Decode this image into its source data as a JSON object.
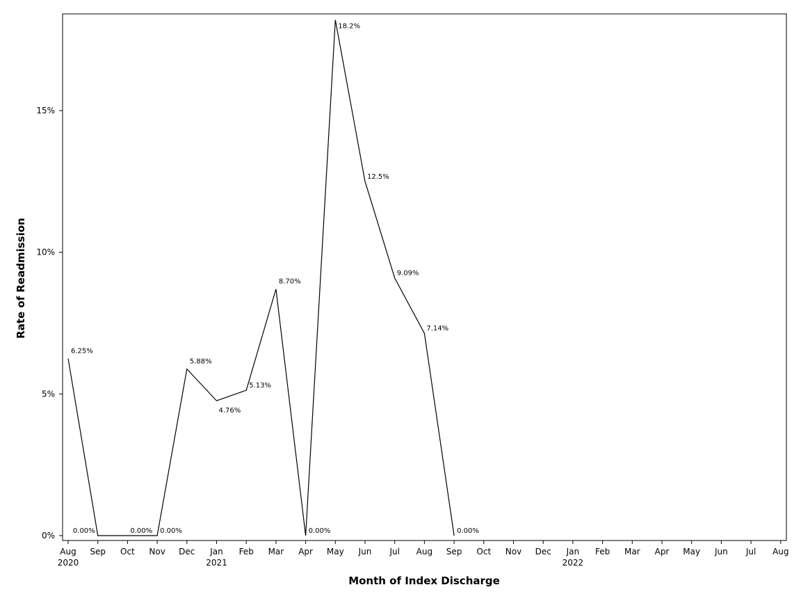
{
  "chart_data": {
    "type": "line",
    "title": "",
    "xlabel": "Month of Index Discharge",
    "ylabel": "Rate of Readmission",
    "ylim": [
      0,
      18.5
    ],
    "yticks": [
      0,
      5,
      10,
      15
    ],
    "ytick_labels": [
      "0%",
      "5%",
      "10%",
      "15%"
    ],
    "xtick_labels": [
      "Aug",
      "Sep",
      "Oct",
      "Nov",
      "Dec",
      "Jan",
      "Feb",
      "Mar",
      "Apr",
      "May",
      "Jun",
      "Jul",
      "Aug",
      "Sep",
      "Oct",
      "Nov",
      "Dec",
      "Jan",
      "Feb",
      "Mar",
      "Apr",
      "May",
      "Jun",
      "Jul",
      "Aug"
    ],
    "year_labels": [
      {
        "month": "Aug",
        "year": "2020"
      },
      {
        "month": "Jan",
        "year": "2021"
      },
      {
        "month": "Jan",
        "year": "2022"
      }
    ],
    "x_range": [
      "2020-08",
      "2022-08"
    ],
    "grid": false,
    "series": [
      {
        "x": [
          "2020-08",
          "2020-09",
          "2020-10",
          "2020-11",
          "2020-12",
          "2021-01",
          "2021-02",
          "2021-03",
          "2021-04",
          "2021-05",
          "2021-06",
          "2021-07",
          "2021-08",
          "2021-09"
        ],
        "values": [
          6.25,
          0,
          0,
          0,
          5.88,
          4.76,
          5.13,
          8.7,
          0,
          18.2,
          12.5,
          9.09,
          7.14,
          0
        ],
        "labels": [
          "6.25%",
          "0.00%",
          "0.00%",
          "0.00%",
          "5.88%",
          "4.76%",
          "5.13%",
          "8.70%",
          "0.00%",
          "18.2%",
          "12.5%",
          "9.09%",
          "7.14%",
          "0.00%"
        ],
        "color": "#000000"
      }
    ]
  }
}
